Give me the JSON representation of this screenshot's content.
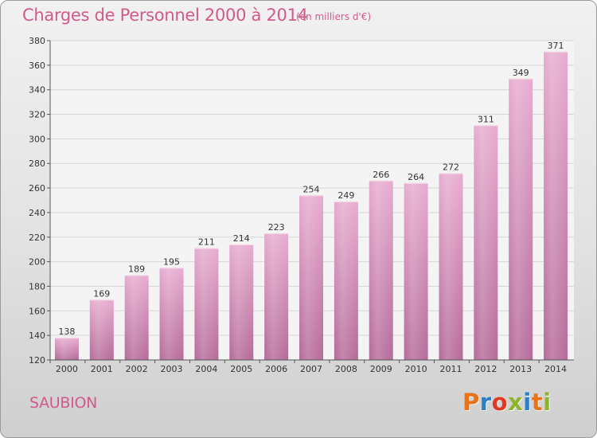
{
  "header": {
    "title": "Charges de Personnel 2000 à 2014",
    "subtitle": "(en milliers d'€)"
  },
  "footer": {
    "town": "SAUBION",
    "logo_letters": [
      "P",
      "r",
      "o",
      "x",
      "i",
      "t",
      "i"
    ]
  },
  "colors": {
    "text_accent": "#d05a8c",
    "bar_top": "#e7acd0",
    "bar_bottom": "#b56a98",
    "logo": [
      "#e8731a",
      "#2a80c8",
      "#e03a22",
      "#8db42a",
      "#2a80c8",
      "#e8731a",
      "#8db42a"
    ]
  },
  "chart_data": {
    "type": "bar",
    "title": "Charges de Personnel 2000 à 2014",
    "subtitle": "(en milliers d'€)",
    "categories": [
      "2000",
      "2001",
      "2002",
      "2003",
      "2004",
      "2005",
      "2006",
      "2007",
      "2008",
      "2009",
      "2010",
      "2011",
      "2012",
      "2013",
      "2014"
    ],
    "values": [
      138,
      169,
      189,
      195,
      211,
      214,
      223,
      254,
      249,
      266,
      264,
      272,
      311,
      349,
      371
    ],
    "ylim": [
      120,
      380
    ],
    "yticks": [
      120,
      140,
      160,
      180,
      200,
      220,
      240,
      260,
      280,
      300,
      320,
      340,
      360,
      380
    ],
    "grid": true,
    "legend": "none",
    "data_labels": true
  }
}
